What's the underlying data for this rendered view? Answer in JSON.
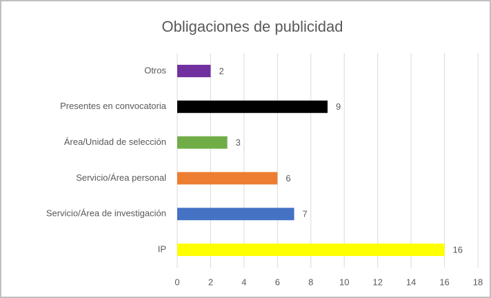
{
  "chart_data": {
    "type": "barh",
    "title": "Obligaciones de publicidad",
    "categories": [
      "Otros",
      "Presentes en convocatoria",
      "Área/Unidad de selección",
      "Servicio/Área personal",
      "Servicio/Área de investigación",
      "IP"
    ],
    "values": [
      2,
      9,
      3,
      6,
      7,
      16
    ],
    "colors": [
      "#7030a0",
      "#000000",
      "#70ad47",
      "#ed7d31",
      "#4472c4",
      "#ffff00"
    ],
    "xlim": [
      0,
      18
    ],
    "xticks": [
      0,
      2,
      4,
      6,
      8,
      10,
      12,
      14,
      16,
      18
    ],
    "grid": true
  }
}
